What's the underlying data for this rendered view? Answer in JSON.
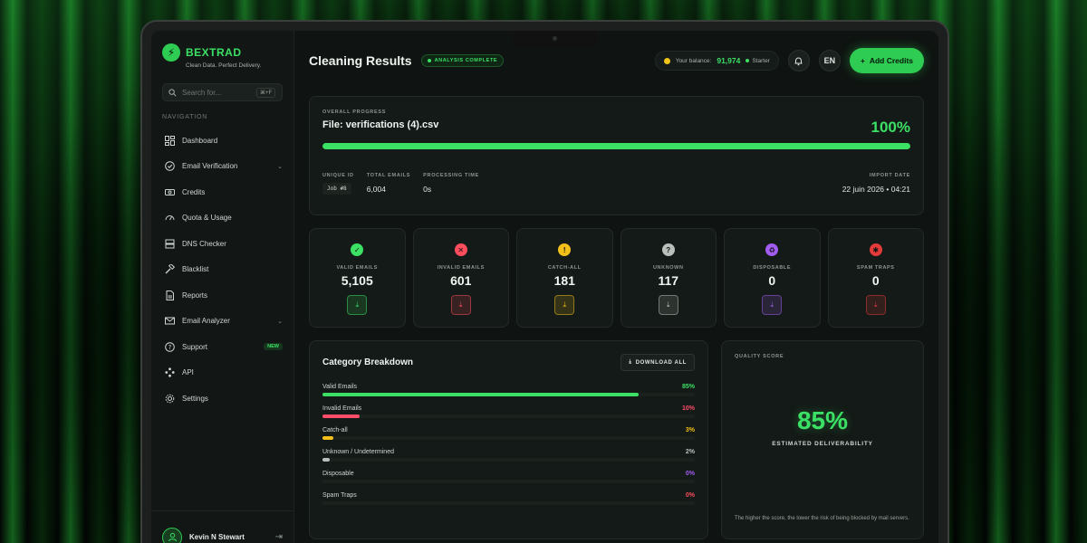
{
  "brand": {
    "name": "BEXTRAD",
    "tagline": "Clean Data. Perfect Delivery."
  },
  "search": {
    "placeholder": "Search for...",
    "shortcut": "⌘+F"
  },
  "nav": {
    "title": "NAVIGATION",
    "items": [
      {
        "label": "Dashboard",
        "icon": "dashboard-icon"
      },
      {
        "label": "Email Verification",
        "icon": "check-circle-icon",
        "has_chevron": true
      },
      {
        "label": "Credits",
        "icon": "credits-icon"
      },
      {
        "label": "Quota & Usage",
        "icon": "gauge-icon"
      },
      {
        "label": "DNS Checker",
        "icon": "server-icon"
      },
      {
        "label": "Blacklist",
        "icon": "hammer-icon"
      },
      {
        "label": "Reports",
        "icon": "report-icon"
      },
      {
        "label": "Email Analyzer",
        "icon": "mail-icon",
        "has_chevron": true
      },
      {
        "label": "Support",
        "icon": "help-icon",
        "badge": "NEW"
      },
      {
        "label": "API",
        "icon": "api-icon"
      },
      {
        "label": "Settings",
        "icon": "gear-icon"
      }
    ]
  },
  "user": {
    "name": "Kevin N Stewart"
  },
  "header": {
    "title": "Cleaning Results",
    "status": "ANALYSIS COMPLETE",
    "balance_label": "Your balance:",
    "balance_value": "91,974",
    "plan": "Starter",
    "language": "EN",
    "add_credits": "Add Credits"
  },
  "progress": {
    "label": "OVERALL PROGRESS",
    "file": "File: verifications (4).csv",
    "percent_text": "100%",
    "percent": 100,
    "unique_id_label": "UNIQUE ID",
    "unique_id": "Job #8",
    "total_label": "TOTAL EMAILS",
    "total": "6,004",
    "time_label": "PROCESSING TIME",
    "time": "0s",
    "date_label": "IMPORT DATE",
    "date": "22 juin 2026 • 04:21"
  },
  "stats": [
    {
      "label": "VALID EMAILS",
      "value": "5,105",
      "icon": "check-icon",
      "color": "#3be064"
    },
    {
      "label": "INVALID EMAILS",
      "value": "601",
      "icon": "x-icon",
      "color": "#ff4d5e"
    },
    {
      "label": "CATCH-ALL",
      "value": "181",
      "icon": "warning-icon",
      "color": "#f2c018"
    },
    {
      "label": "UNKNOWN",
      "value": "117",
      "icon": "question-icon",
      "color": "#b9c0bc"
    },
    {
      "label": "DISPOSABLE",
      "value": "0",
      "icon": "recycle-icon",
      "color": "#a25cf0"
    },
    {
      "label": "SPAM TRAPS",
      "value": "0",
      "icon": "bug-icon",
      "color": "#e33a3a"
    }
  ],
  "breakdown": {
    "title": "Category Breakdown",
    "download_all": "DOWNLOAD ALL",
    "rows": [
      {
        "label": "Valid Emails",
        "pct_text": "85%",
        "pct": 85,
        "color": "#3be064"
      },
      {
        "label": "Invalid Emails",
        "pct_text": "10%",
        "pct": 10,
        "color": "#ff4d6a"
      },
      {
        "label": "Catch-all",
        "pct_text": "3%",
        "pct": 3,
        "color": "#f2c018"
      },
      {
        "label": "Unknown / Undetermined",
        "pct_text": "2%",
        "pct": 2,
        "color": "#b9c0bc"
      },
      {
        "label": "Disposable",
        "pct_text": "0%",
        "pct": 0,
        "color": "#a25cf0"
      },
      {
        "label": "Spam Traps",
        "pct_text": "0%",
        "pct": 0,
        "color": "#ff4d5e"
      }
    ]
  },
  "quality": {
    "label": "QUALITY SCORE",
    "value": "85%",
    "subtitle": "ESTIMATED DELIVERABILITY",
    "note": "The higher the score, the lower the risk of being blocked by mail servers."
  }
}
